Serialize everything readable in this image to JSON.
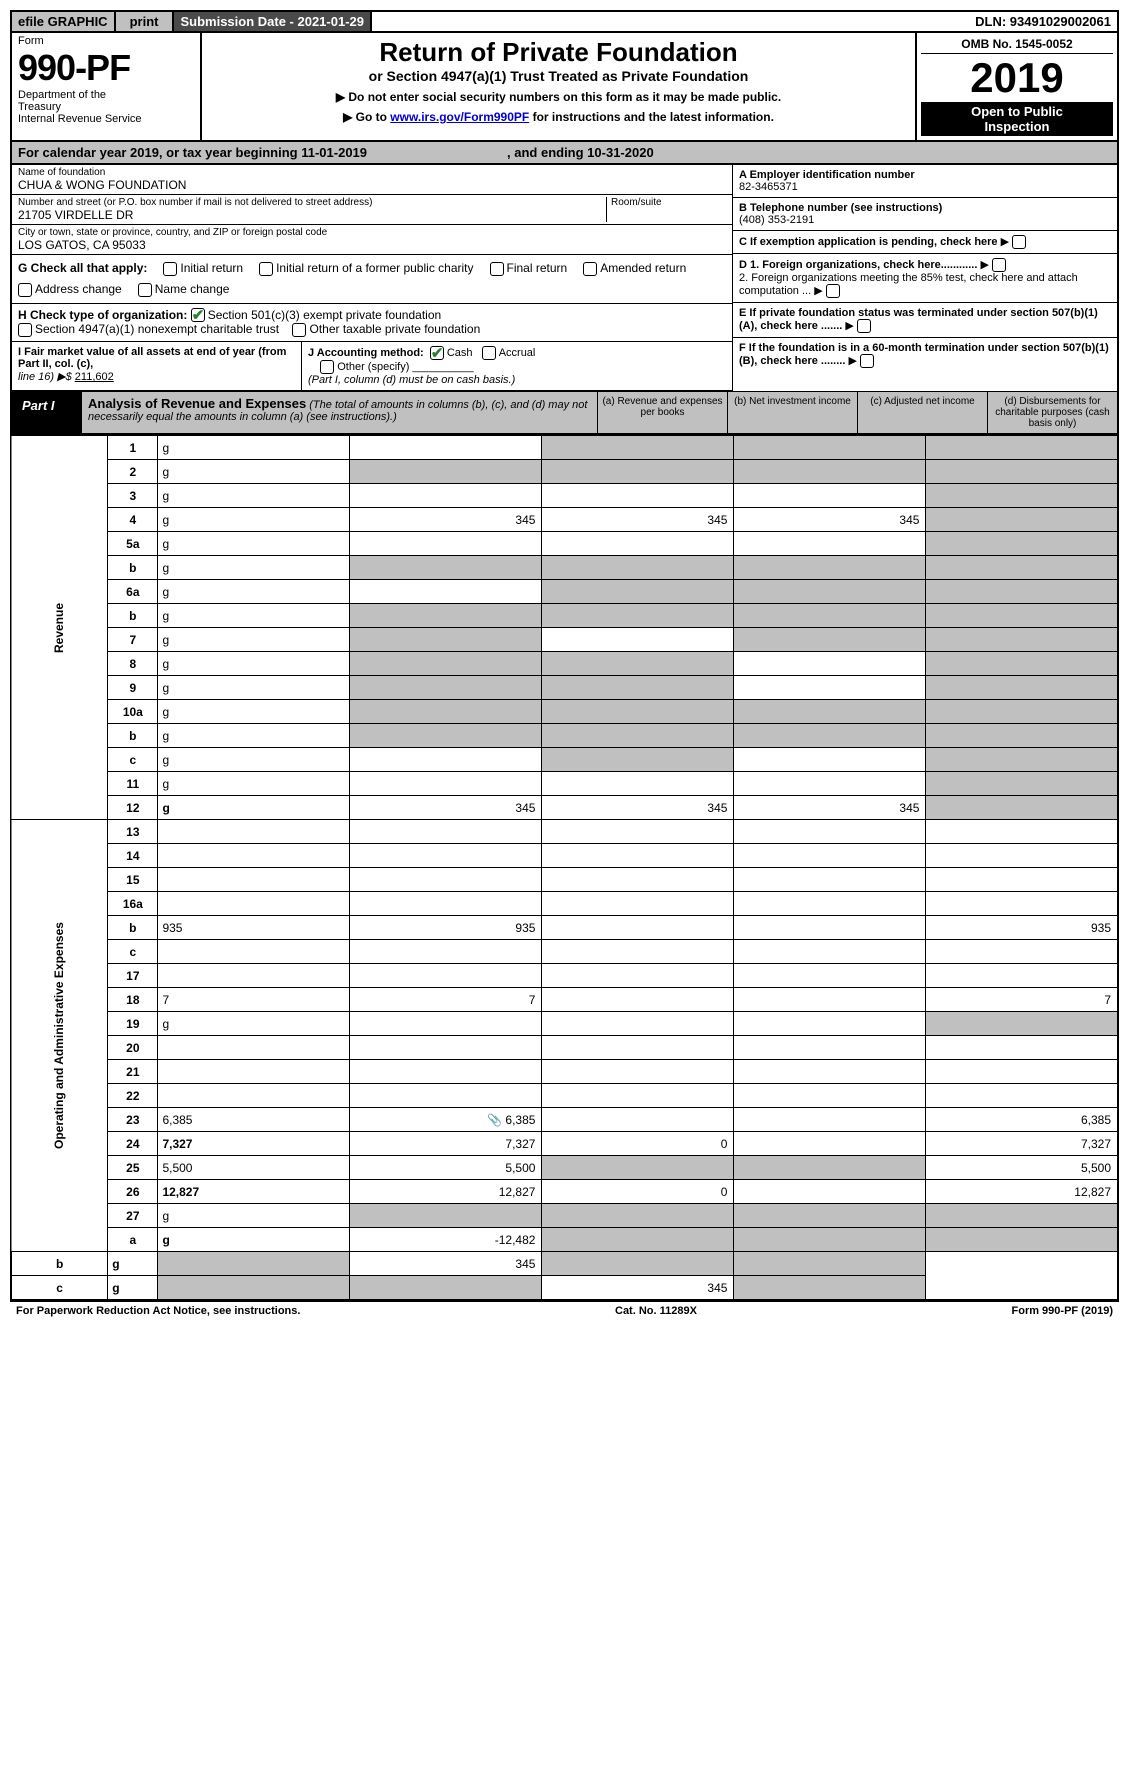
{
  "colors": {
    "grey": "#c0c0c0",
    "dark": "#4a4a4a",
    "check": "#2e7d32",
    "link": "#0000cc"
  },
  "topbar": {
    "efile": "efile GRAPHIC",
    "print": "print",
    "submission": "Submission Date - 2021-01-29",
    "dln": "DLN: 93491029002061"
  },
  "header": {
    "form_small": "Form",
    "form_num": "990-PF",
    "dept1": "Department of the",
    "dept2": "Treasury",
    "dept3": "Internal Revenue Service",
    "title": "Return of Private Foundation",
    "subtitle": "or Section 4947(a)(1) Trust Treated as Private Foundation",
    "warn1": "▶ Do not enter social security numbers on this form as it may be made public.",
    "warn2_pre": "▶ Go to ",
    "warn2_link": "www.irs.gov/Form990PF",
    "warn2_post": " for instructions and the latest information.",
    "omb": "OMB No. 1545-0052",
    "year": "2019",
    "open1": "Open to Public",
    "open2": "Inspection"
  },
  "calendar_row": {
    "pre": "For calendar year 2019, or tax year beginning 11-01-2019",
    "mid": ", and ending 10-31-2020"
  },
  "entity": {
    "name_lbl": "Name of foundation",
    "name": "CHUA & WONG FOUNDATION",
    "addr_lbl": "Number and street (or P.O. box number if mail is not delivered to street address)",
    "room_lbl": "Room/suite",
    "addr": "21705 VIRDELLE DR",
    "city_lbl": "City or town, state or province, country, and ZIP or foreign postal code",
    "city": "LOS GATOS, CA  95033"
  },
  "rightcol": {
    "a_lbl": "A Employer identification number",
    "a_val": "82-3465371",
    "b_lbl": "B Telephone number (see instructions)",
    "b_val": "(408) 353-2191",
    "c_lbl": "C If exemption application is pending, check here",
    "d1": "D 1. Foreign organizations, check here............",
    "d2": "2. Foreign organizations meeting the 85% test, check here and attach computation ...",
    "e": "E  If private foundation status was terminated under section 507(b)(1)(A), check here .......",
    "f": "F  If the foundation is in a 60-month termination under section 507(b)(1)(B), check here ........"
  },
  "g_row": {
    "lbl": "G Check all that apply:",
    "opts": [
      "Initial return",
      "Initial return of a former public charity",
      "Final return",
      "Amended return",
      "Address change",
      "Name change"
    ]
  },
  "h_row": {
    "lbl": "H Check type of organization:",
    "opt1": "Section 501(c)(3) exempt private foundation",
    "opt2": "Section 4947(a)(1) nonexempt charitable trust",
    "opt3": "Other taxable private foundation"
  },
  "i_row": {
    "lbl": "I Fair market value of all assets at end of year (from Part II, col. (c),",
    "line": "line 16) ▶$",
    "val": "211,602"
  },
  "j_row": {
    "lbl": "J Accounting method:",
    "cash": "Cash",
    "accrual": "Accrual",
    "other": "Other (specify)",
    "note": "(Part I, column (d) must be on cash basis.)"
  },
  "part1": {
    "label": "Part I",
    "title": "Analysis of Revenue and Expenses",
    "sub": " (The total of amounts in columns (b), (c), and (d) may not necessarily equal the amounts in column (a) (see instructions).)",
    "cols": {
      "a": "(a)   Revenue and expenses per books",
      "b": "(b)   Net investment income",
      "c": "(c)   Adjusted net income",
      "d": "(d)   Disbursements for charitable purposes (cash basis only)"
    }
  },
  "sections": {
    "revenue": "Revenue",
    "expenses": "Operating and Administrative Expenses"
  },
  "rows": [
    {
      "n": "1",
      "d": "g",
      "a": "",
      "b": "g",
      "c": "g"
    },
    {
      "n": "2",
      "d": "g",
      "a": "g",
      "b": "g",
      "c": "g"
    },
    {
      "n": "3",
      "d": "g",
      "a": "",
      "b": "",
      "c": ""
    },
    {
      "n": "4",
      "d": "g",
      "a": "345",
      "b": "345",
      "c": "345"
    },
    {
      "n": "5a",
      "d": "g",
      "a": "",
      "b": "",
      "c": ""
    },
    {
      "n": "b",
      "d": "g",
      "a": "g",
      "b": "g",
      "c": "g"
    },
    {
      "n": "6a",
      "d": "g",
      "a": "",
      "b": "g",
      "c": "g"
    },
    {
      "n": "b",
      "d": "g",
      "a": "g",
      "b": "g",
      "c": "g"
    },
    {
      "n": "7",
      "d": "g",
      "a": "g",
      "b": "",
      "c": "g"
    },
    {
      "n": "8",
      "d": "g",
      "a": "g",
      "b": "g",
      "c": ""
    },
    {
      "n": "9",
      "d": "g",
      "a": "g",
      "b": "g",
      "c": ""
    },
    {
      "n": "10a",
      "d": "g",
      "a": "g",
      "b": "g",
      "c": "g"
    },
    {
      "n": "b",
      "d": "g",
      "a": "g",
      "b": "g",
      "c": "g"
    },
    {
      "n": "c",
      "d": "g",
      "a": "",
      "b": "g",
      "c": ""
    },
    {
      "n": "11",
      "d": "g",
      "a": "",
      "b": "",
      "c": ""
    },
    {
      "n": "12",
      "d": "g",
      "bold": true,
      "a": "345",
      "b": "345",
      "c": "345"
    },
    {
      "n": "13",
      "d": "",
      "a": "",
      "b": "",
      "c": ""
    },
    {
      "n": "14",
      "d": "",
      "a": "",
      "b": "",
      "c": ""
    },
    {
      "n": "15",
      "d": "",
      "a": "",
      "b": "",
      "c": ""
    },
    {
      "n": "16a",
      "d": "",
      "a": "",
      "b": "",
      "c": ""
    },
    {
      "n": "b",
      "d": "935",
      "a": "935",
      "b": "",
      "c": ""
    },
    {
      "n": "c",
      "d": "",
      "a": "",
      "b": "",
      "c": ""
    },
    {
      "n": "17",
      "d": "",
      "a": "",
      "b": "",
      "c": ""
    },
    {
      "n": "18",
      "d": "7",
      "a": "7",
      "b": "",
      "c": ""
    },
    {
      "n": "19",
      "d": "g",
      "a": "",
      "b": "",
      "c": ""
    },
    {
      "n": "20",
      "d": "",
      "a": "",
      "b": "",
      "c": ""
    },
    {
      "n": "21",
      "d": "",
      "a": "",
      "b": "",
      "c": ""
    },
    {
      "n": "22",
      "d": "",
      "a": "",
      "b": "",
      "c": ""
    },
    {
      "n": "23",
      "d": "6,385",
      "icon": true,
      "a": "6,385",
      "b": "",
      "c": ""
    },
    {
      "n": "24",
      "d": "7,327",
      "bold": true,
      "a": "7,327",
      "b": "0",
      "c": ""
    },
    {
      "n": "25",
      "d": "5,500",
      "a": "5,500",
      "b": "g",
      "c": "g"
    },
    {
      "n": "26",
      "d": "12,827",
      "bold": true,
      "a": "12,827",
      "b": "0",
      "c": ""
    },
    {
      "n": "27",
      "d": "g",
      "a": "g",
      "b": "g",
      "c": "g"
    },
    {
      "n": "a",
      "d": "g",
      "bold": true,
      "a": "-12,482",
      "b": "g",
      "c": "g"
    },
    {
      "n": "b",
      "d": "g",
      "bold": true,
      "a": "g",
      "b": "345",
      "c": "g"
    },
    {
      "n": "c",
      "d": "g",
      "bold": true,
      "a": "g",
      "b": "g",
      "c": "345"
    }
  ],
  "footer": {
    "left": "For Paperwork Reduction Act Notice, see instructions.",
    "mid": "Cat. No. 11289X",
    "right": "Form 990-PF (2019)"
  }
}
